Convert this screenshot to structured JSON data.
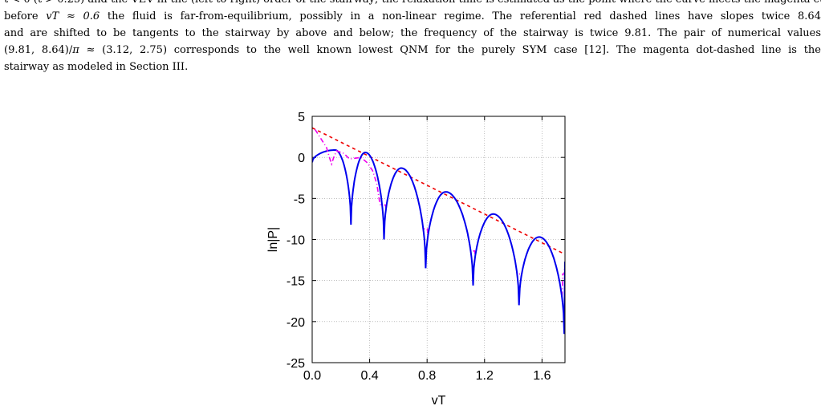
{
  "caption": {
    "line0": "t < 0 (t > 0.25) and the VEV in the (left-to-right) order of the stairway; the relaxation time is estimated as the point where the curve meets the magenta curve",
    "line1_a": "before ",
    "line1_math": "vT ≈ 0.6",
    "line1_b": " the fluid is far-from-equilibrium, possibly in a non-linear regime. The referential red dashed lines have slopes twice 8.64",
    "line2": "and are shifted to be tangents to the stairway by above and below; the frequency of the stairway is twice 9.81. The pair of numerical values",
    "line3_a": "(9.81, 8.64)/",
    "line3_pi": "π",
    "line3_b": " ≈ (3.12, 2.75) corresponds to the well known lowest QNM for the purely SYM case [12]. The magenta dot-dashed line is the",
    "line4": "stairway as modeled in Section III."
  },
  "chart_data": {
    "type": "line",
    "xlabel": "vT",
    "ylabel": "ln|P|",
    "xlim": [
      0.0,
      1.76
    ],
    "ylim": [
      -25,
      5
    ],
    "xticks": [
      "0.0",
      "0.4",
      "0.8",
      "1.2",
      "1.6"
    ],
    "yticks": [
      "5",
      "0",
      "-5",
      "-10",
      "-15",
      "-20",
      "-25"
    ],
    "grid": true,
    "colors": {
      "numerical": "#0000ee",
      "model": "#ee00ee",
      "reference": "#ee0000"
    },
    "series": [
      {
        "style": "solid",
        "color": "blue",
        "dips": [
          {
            "x": 0.27,
            "min": -8.2
          },
          {
            "x": 0.5,
            "min": -10.0
          },
          {
            "x": 0.79,
            "min": -13.5
          },
          {
            "x": 1.12,
            "min": -15.6
          },
          {
            "x": 1.44,
            "min": -18.0
          },
          {
            "x": 1.755,
            "min": -21.5
          }
        ],
        "peaks": [
          {
            "x": 0.16,
            "y": 0.9
          },
          {
            "x": 0.37,
            "y": 0.6
          },
          {
            "x": 0.62,
            "y": -1.3
          },
          {
            "x": 0.93,
            "y": -4.2
          },
          {
            "x": 1.26,
            "y": -6.9
          },
          {
            "x": 1.58,
            "y": -9.7
          }
        ],
        "start": {
          "x": 0.0,
          "y": -0.6
        },
        "end": {
          "x": 1.76,
          "y": -12.7
        }
      },
      {
        "style": "dot-dashed",
        "color": "magenta",
        "points": [
          {
            "x": 0.02,
            "y": 3.4
          },
          {
            "x": 0.06,
            "y": 2.3
          },
          {
            "x": 0.1,
            "y": 1.2
          },
          {
            "x": 0.12,
            "y": 0.0
          },
          {
            "x": 0.135,
            "y": -0.8
          },
          {
            "x": 0.15,
            "y": 0.0
          },
          {
            "x": 0.17,
            "y": 0.8
          },
          {
            "x": 0.22,
            "y": 0.5
          },
          {
            "x": 0.26,
            "y": -0.2
          },
          {
            "x": 0.3,
            "y": -0.1
          },
          {
            "x": 0.34,
            "y": 0.0
          },
          {
            "x": 0.38,
            "y": -0.6
          },
          {
            "x": 0.42,
            "y": -1.6
          },
          {
            "x": 0.45,
            "y": -3.2
          },
          {
            "x": 0.47,
            "y": -5.5
          },
          {
            "x": 0.48,
            "y": -6.0
          }
        ]
      },
      {
        "style": "dashed",
        "color": "red",
        "points": [
          {
            "x": 0.0,
            "y": 3.6
          },
          {
            "x": 1.76,
            "y": -11.8
          }
        ]
      }
    ]
  }
}
